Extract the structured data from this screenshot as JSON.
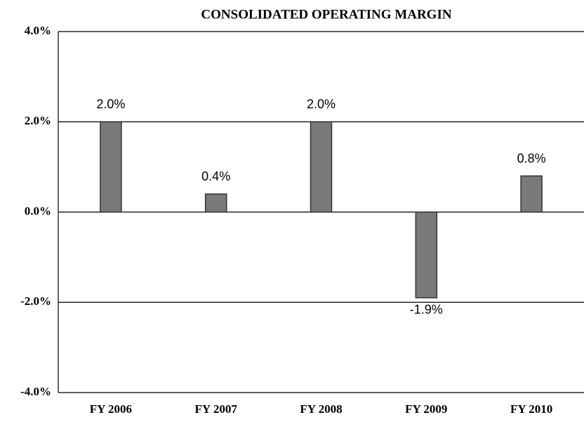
{
  "chart_data": {
    "type": "bar",
    "title": "CONSOLIDATED OPERATING MARGIN",
    "categories": [
      "FY 2006",
      "FY 2007",
      "FY 2008",
      "FY 2009",
      "FY 2010"
    ],
    "values": [
      2.0,
      0.4,
      2.0,
      -1.9,
      0.8
    ],
    "value_labels": [
      "2.0%",
      "0.4%",
      "2.0%",
      "-1.9%",
      "0.8%"
    ],
    "color": "#7a7a7a",
    "ylim": [
      -4,
      4
    ],
    "yticks": [
      {
        "value": -4,
        "label": "-4.0%"
      },
      {
        "value": -2,
        "label": "-2.0%"
      },
      {
        "value": 0,
        "label": "0.0%"
      },
      {
        "value": 2,
        "label": "2.0%"
      },
      {
        "value": 4,
        "label": "4.0%"
      }
    ],
    "grid": true
  }
}
